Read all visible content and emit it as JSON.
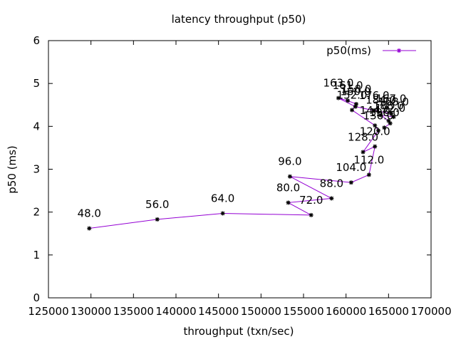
{
  "chart_data": {
    "type": "line",
    "title": "latency throughput (p50)",
    "xlabel": "throughput (txn/sec)",
    "ylabel": "p50 (ms)",
    "xlim": [
      125000,
      170000
    ],
    "ylim": [
      0,
      6
    ],
    "x_ticks": [
      125000,
      130000,
      135000,
      140000,
      145000,
      150000,
      155000,
      160000,
      165000,
      170000
    ],
    "y_ticks": [
      0,
      1,
      2,
      3,
      4,
      5,
      6
    ],
    "grid": false,
    "legend": "top-right",
    "series": [
      {
        "name": "p50(ms)",
        "color": "#9400d3",
        "points": [
          {
            "x": 129800,
            "y": 1.62,
            "label": "48.0"
          },
          {
            "x": 137800,
            "y": 1.83,
            "label": "56.0"
          },
          {
            "x": 145500,
            "y": 1.97,
            "label": "64.0"
          },
          {
            "x": 155900,
            "y": 1.93,
            "label": "72.0"
          },
          {
            "x": 153200,
            "y": 2.22,
            "label": "80.0"
          },
          {
            "x": 158300,
            "y": 2.32,
            "label": "88.0"
          },
          {
            "x": 153400,
            "y": 2.83,
            "label": "96.0"
          },
          {
            "x": 160600,
            "y": 2.69,
            "label": "104.0"
          },
          {
            "x": 162700,
            "y": 2.87,
            "label": "112.0"
          },
          {
            "x": 163400,
            "y": 3.53,
            "label": "120.0"
          },
          {
            "x": 162000,
            "y": 3.4,
            "label": "128.0"
          },
          {
            "x": 163800,
            "y": 3.9,
            "label": "136.0"
          },
          {
            "x": 163400,
            "y": 4.02,
            "label": "144.0"
          },
          {
            "x": 160700,
            "y": 4.38,
            "label": "152.0"
          },
          {
            "x": 161200,
            "y": 4.52,
            "label": "158.0"
          },
          {
            "x": 160200,
            "y": 4.6,
            "label": "161.0"
          },
          {
            "x": 159100,
            "y": 4.66,
            "label": "163.0"
          },
          {
            "x": 161100,
            "y": 4.46,
            "label": "160.0"
          },
          {
            "x": 163300,
            "y": 4.37,
            "label": "176.0"
          },
          {
            "x": 165300,
            "y": 4.3,
            "label": "167.0"
          },
          {
            "x": 165600,
            "y": 4.22,
            "label": "168.0"
          },
          {
            "x": 164100,
            "y": 4.26,
            "label": "184.0"
          },
          {
            "x": 165000,
            "y": 4.13,
            "label": "188.0"
          },
          {
            "x": 165200,
            "y": 4.07,
            "label": "192.0"
          },
          {
            "x": 164500,
            "y": 3.97,
            "label": "196.0"
          }
        ]
      }
    ]
  }
}
